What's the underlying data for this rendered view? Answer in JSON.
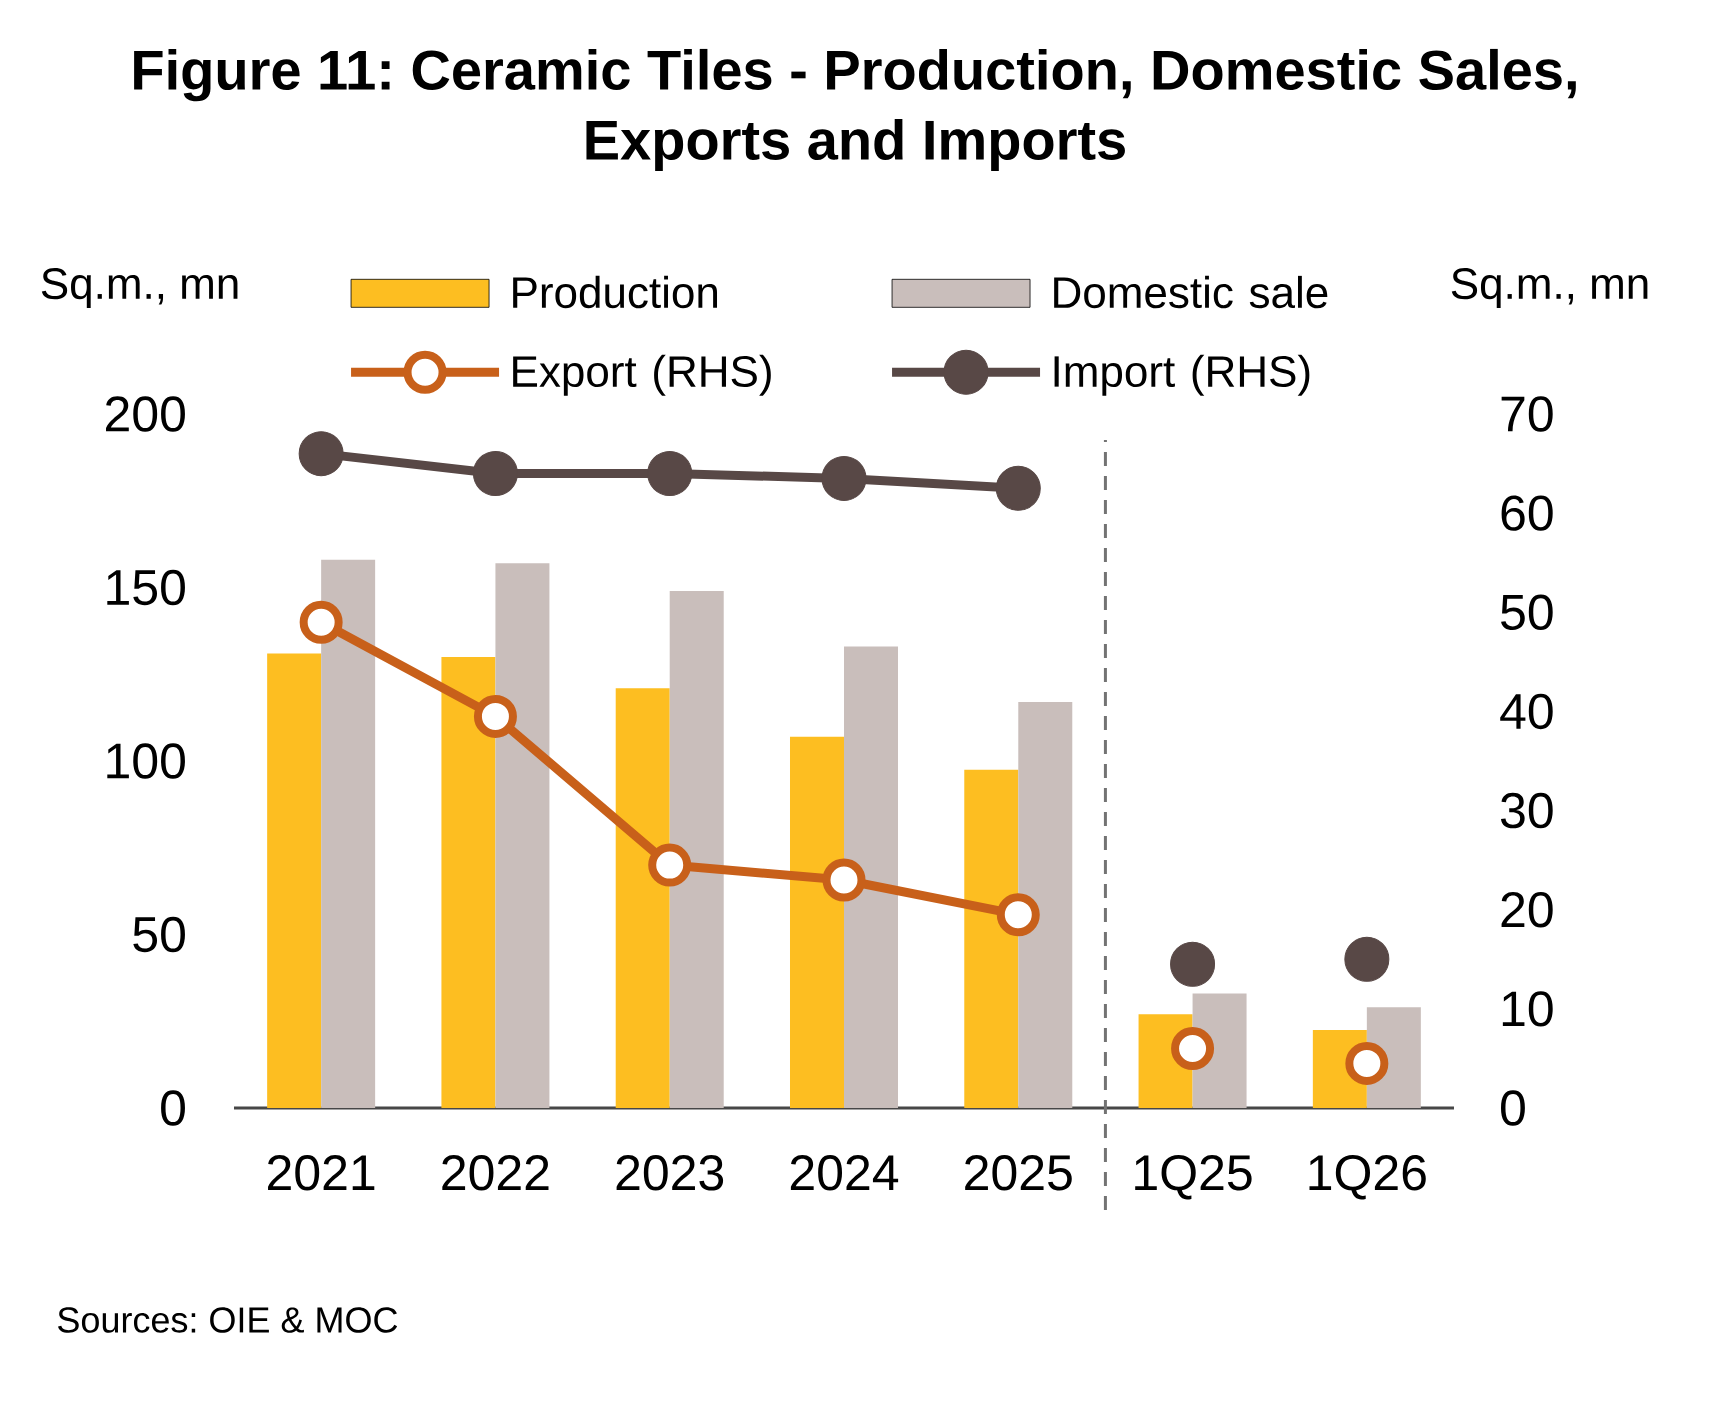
{
  "chart_data": {
    "type": "bar",
    "title": "Figure 11: Ceramic Tiles - Production, Domestic Sales, Exports and Imports",
    "ylabel": "Sq.m., mn",
    "y2label": "Sq.m., mn",
    "categories": [
      "2021",
      "2022",
      "2023",
      "2024",
      "2025",
      "1Q25",
      "1Q26"
    ],
    "series": [
      {
        "name": "Production",
        "color": "#FDBE21",
        "values": [
          131,
          130,
          121,
          107,
          97.5,
          27,
          22.5
        ]
      },
      {
        "name": "Domestic sale",
        "color": "#C9BEBB",
        "values": [
          158,
          157,
          149,
          133,
          117,
          33,
          29
        ]
      },
      {
        "name": "Export (RHS)",
        "type": "line",
        "axis": "y2",
        "marker": "circle",
        "color": "#C8601A",
        "values": [
          49,
          39.5,
          24.5,
          23,
          19.5,
          null,
          null
        ]
      },
      {
        "name": "Import (RHS)",
        "type": "line",
        "axis": "y2",
        "marker": "circle",
        "color": "#584846",
        "values": [
          66,
          64,
          64,
          63.5,
          62.5,
          null,
          null
        ]
      },
      {
        "type": "scatter",
        "axis": "y2",
        "marker": "circle",
        "color": "#C8601A",
        "values": [
          null,
          null,
          null,
          null,
          null,
          6,
          4.5
        ]
      },
      {
        "type": "scatter",
        "axis": "y2",
        "marker": "circle",
        "color": "#584846",
        "values": [
          null,
          null,
          null,
          null,
          null,
          14.5,
          15
        ]
      }
    ],
    "ylim": [
      0,
      200
    ],
    "yticks": [
      0,
      50,
      100,
      150,
      200
    ],
    "y2lim": [
      0,
      70
    ],
    "y2ticks": [
      0,
      10,
      20,
      30,
      40,
      50,
      60,
      70
    ],
    "legend": "top",
    "annotations": [
      "Sources: OIE & MOC"
    ]
  }
}
